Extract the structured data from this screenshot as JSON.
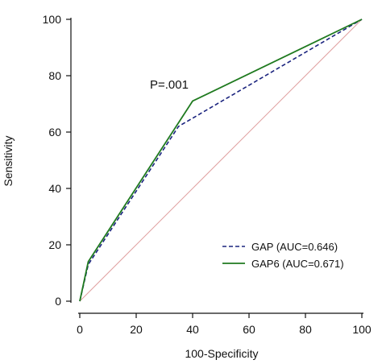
{
  "chart_data": {
    "type": "line",
    "xlabel": "100-Specificity",
    "ylabel": "Sensitivity",
    "xlim": [
      0,
      100
    ],
    "ylim": [
      0,
      100
    ],
    "x_ticks": [
      0,
      20,
      40,
      60,
      80,
      100
    ],
    "y_ticks": [
      0,
      20,
      40,
      60,
      80,
      100
    ],
    "grid": false,
    "legend_position": "bottom-right",
    "annotation": "P=.001",
    "series": [
      {
        "name": "GAP (AUC=0.646)",
        "color": "#1a237e",
        "style": "dashed",
        "points": [
          [
            0,
            0
          ],
          [
            3,
            13
          ],
          [
            35,
            62
          ],
          [
            100,
            100
          ]
        ]
      },
      {
        "name": "GAP6 (AUC=0.671)",
        "color": "#1f7a1f",
        "style": "solid",
        "points": [
          [
            0,
            0
          ],
          [
            3,
            14
          ],
          [
            40,
            71
          ],
          [
            100,
            100
          ]
        ]
      }
    ],
    "reference_line": {
      "color": "#e0a0a0",
      "points": [
        [
          0,
          0
        ],
        [
          100,
          100
        ]
      ]
    }
  }
}
